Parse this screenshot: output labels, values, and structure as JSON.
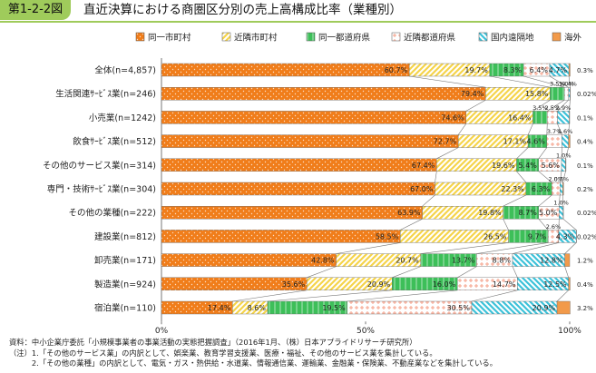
{
  "header": {
    "figure_number": "第1-2-2図",
    "title": "直近決算における商圏区分別の売上高構成比率（業種別）"
  },
  "chart_data": {
    "type": "bar",
    "orientation": "horizontal",
    "stacked": true,
    "percent": true,
    "legend_position": "top",
    "xlim": [
      0,
      100
    ],
    "x_ticks": [
      "0%",
      "50%",
      "100%"
    ],
    "categories": [
      "全体(n=4,857)",
      "生活関連ｻｰﾋﾞｽ業(n=246)",
      "小売業(n=1242)",
      "飲食ｻｰﾋﾞｽ業(n=512)",
      "その他のサービス業(n=314)",
      "専門・技術ｻｰﾋﾞｽ業(n=304)",
      "その他の業種(n=222)",
      "建設業(n=812)",
      "卸売業(n=171)",
      "製造業(n=924)",
      "宿泊業(n=110)"
    ],
    "series": [
      {
        "name": "同一市町村",
        "color": "#f07d1a",
        "pattern": "dots",
        "values": [
          60.7,
          79.4,
          74.6,
          72.7,
          67.4,
          67.0,
          63.9,
          58.5,
          42.8,
          35.6,
          17.4
        ],
        "labels": [
          "60.7%",
          "79.4%",
          "74.6%",
          "72.7%",
          "67.4%",
          "67.0%",
          "63.9%",
          "58.5%",
          "42.8%",
          "35.6%",
          "17.4%"
        ]
      },
      {
        "name": "近隣市町村",
        "color": "#f5d44a",
        "pattern": "diag",
        "values": [
          19.7,
          15.8,
          16.4,
          17.1,
          19.6,
          22.3,
          19.8,
          26.5,
          20.7,
          20.9,
          8.6
        ],
        "labels": [
          "19.7%",
          "15.8%",
          "16.4%",
          "17.1%",
          "19.6%",
          "22.3%",
          "19.8%",
          "26.5%",
          "20.7%",
          "20.9%",
          "8.6%"
        ]
      },
      {
        "name": "同一都道府県",
        "color": "#3dbf59",
        "pattern": "vert",
        "values": [
          8.3,
          3.5,
          3.5,
          4.6,
          5.4,
          6.3,
          8.7,
          9.7,
          13.7,
          16.0,
          19.5
        ],
        "labels": [
          "8.3%",
          "3.5%",
          "3.5%",
          "4.6%",
          "5.4%",
          "6.3%",
          "8.7%",
          "9.7%",
          "13.7%",
          "16.0%",
          "19.5%"
        ]
      },
      {
        "name": "近隣都道府県",
        "color": "#f5a18a",
        "pattern": "cross",
        "values": [
          6.4,
          1.0,
          2.5,
          3.7,
          5.6,
          2.0,
          5.0,
          2.6,
          8.8,
          14.7,
          30.5
        ],
        "labels": [
          "6.4%",
          "1.0%",
          "2.5%",
          "3.7%",
          "5.6%",
          "2.0%",
          "5.0%",
          "2.6%",
          "8.8%",
          "14.7%",
          "30.5%"
        ]
      },
      {
        "name": "国内遠隔地",
        "color": "#3cc2d9",
        "pattern": "hatch",
        "values": [
          4.7,
          0.4,
          2.9,
          1.6,
          1.0,
          0.7,
          1.0,
          4.3,
          12.8,
          12.5,
          20.9
        ],
        "labels": [
          "4.7%",
          "0.4%",
          "2.9%",
          "1.6%",
          "1.0%",
          "0.7%",
          "1.0%",
          "4.3%",
          "12.8%",
          "12.5%",
          "20.9%"
        ]
      },
      {
        "name": "海外",
        "color": "#f29a4a",
        "pattern": "solid",
        "values": [
          0.3,
          0.02,
          0.1,
          0.4,
          0.1,
          0.2,
          0.02,
          0.02,
          1.2,
          0.4,
          3.2
        ],
        "labels": [
          "0.3%",
          "0.02%",
          "0.1%",
          "0.4%",
          "0.1%",
          "0.2%",
          "0.02%",
          "0.02%",
          "1.2%",
          "0.4%",
          "3.2%"
        ]
      }
    ]
  },
  "notes": [
    "資料：中小企業庁委託「小規模事業者の事業活動の実態把握調査」（2016年1月、（株）日本アプライドリサーチ研究所）",
    "（注）1.「その他のサービス業」の内訳として、娯楽業、教育学習支援業、医療・福祉、その他のサービス業を集計している。",
    "　　　2.「その他の業種」の内訳として、電気・ガス・熱供給・水道業、情報通信業、運輸業、金融業・保険業、不動産業などを集計している。"
  ]
}
